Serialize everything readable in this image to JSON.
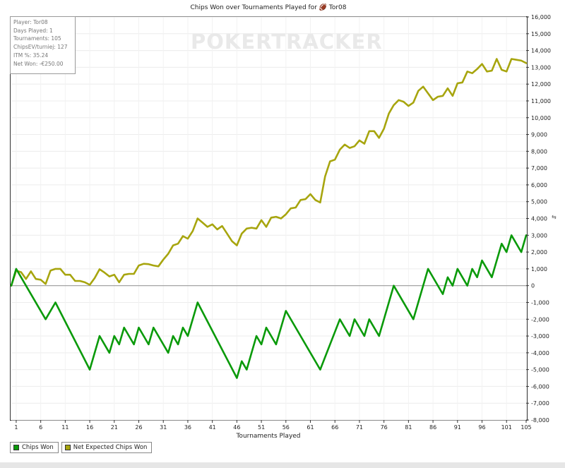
{
  "chart_data": {
    "type": "line",
    "title": "Chips Won over Tournaments Played for 🏈 Tor08",
    "xlabel": "Tournaments Played",
    "ylabel": "",
    "xlim": [
      0,
      105
    ],
    "ylim": [
      -8000,
      16000
    ],
    "x_ticks": [
      1,
      6,
      11,
      16,
      21,
      26,
      31,
      36,
      41,
      46,
      51,
      56,
      61,
      66,
      71,
      76,
      81,
      86,
      91,
      96,
      101,
      105
    ],
    "y_ticks": [
      16000,
      15000,
      14000,
      13000,
      12000,
      11000,
      10000,
      9000,
      8000,
      7000,
      6000,
      5000,
      4000,
      3000,
      2000,
      1000,
      0,
      -1000,
      -2000,
      -3000,
      -4000,
      -5000,
      -6000,
      -7000,
      -8000
    ],
    "y_tick_labels": [
      "16,000",
      "15,000",
      "14,000",
      "13,000",
      "12,000",
      "11,000",
      "10,000",
      "9,000",
      "8,000",
      "7,000",
      "6,000",
      "5,000",
      "4,000",
      "3,000",
      "2,000",
      "1,000",
      "0",
      "-1,000",
      "-2,000",
      "-3,000",
      "-4,000",
      "-5,000",
      "-6,000",
      "-7,000",
      "-8,000"
    ],
    "grid": true,
    "legend_position": "bottom-left",
    "series": [
      {
        "name": "Chips Won",
        "color": "#0a9a0a",
        "points": [
          [
            0,
            0
          ],
          [
            1,
            1000
          ],
          [
            7,
            -2000
          ],
          [
            9,
            -1000
          ],
          [
            16,
            -5000
          ],
          [
            18,
            -3000
          ],
          [
            20,
            -4000
          ],
          [
            21,
            -3000
          ],
          [
            22,
            -3500
          ],
          [
            23,
            -2500
          ],
          [
            25,
            -3500
          ],
          [
            26,
            -2500
          ],
          [
            28,
            -3500
          ],
          [
            29,
            -2500
          ],
          [
            32,
            -4000
          ],
          [
            33,
            -3000
          ],
          [
            34,
            -3500
          ],
          [
            35,
            -2500
          ],
          [
            36,
            -3000
          ],
          [
            38,
            -1000
          ],
          [
            46,
            -5500
          ],
          [
            47,
            -4500
          ],
          [
            48,
            -5000
          ],
          [
            50,
            -3000
          ],
          [
            51,
            -3500
          ],
          [
            52,
            -2500
          ],
          [
            54,
            -3500
          ],
          [
            56,
            -1500
          ],
          [
            63,
            -5000
          ],
          [
            67,
            -2000
          ],
          [
            69,
            -3000
          ],
          [
            70,
            -2000
          ],
          [
            72,
            -3000
          ],
          [
            73,
            -2000
          ],
          [
            75,
            -3000
          ],
          [
            78,
            0
          ],
          [
            82,
            -2000
          ],
          [
            85,
            1000
          ],
          [
            88,
            -500
          ],
          [
            89,
            500
          ],
          [
            90,
            0
          ],
          [
            91,
            1000
          ],
          [
            93,
            0
          ],
          [
            94,
            1000
          ],
          [
            95,
            500
          ],
          [
            96,
            1500
          ],
          [
            98,
            500
          ],
          [
            100,
            2500
          ],
          [
            101,
            2000
          ],
          [
            102,
            3000
          ],
          [
            104,
            2000
          ],
          [
            105,
            3000
          ]
        ]
      },
      {
        "name": "Net Expected Chips Won",
        "color": "#a7a50e",
        "points": [
          [
            0,
            0
          ],
          [
            1,
            900
          ],
          [
            2,
            800
          ],
          [
            3,
            400
          ],
          [
            4,
            850
          ],
          [
            5,
            400
          ],
          [
            6,
            350
          ],
          [
            7,
            100
          ],
          [
            8,
            900
          ],
          [
            9,
            1000
          ],
          [
            10,
            1000
          ],
          [
            11,
            650
          ],
          [
            12,
            650
          ],
          [
            13,
            280
          ],
          [
            14,
            280
          ],
          [
            15,
            200
          ],
          [
            16,
            50
          ],
          [
            17,
            450
          ],
          [
            18,
            980
          ],
          [
            19,
            780
          ],
          [
            20,
            550
          ],
          [
            21,
            650
          ],
          [
            22,
            200
          ],
          [
            23,
            650
          ],
          [
            24,
            700
          ],
          [
            25,
            700
          ],
          [
            26,
            1200
          ],
          [
            27,
            1300
          ],
          [
            28,
            1280
          ],
          [
            29,
            1200
          ],
          [
            30,
            1150
          ],
          [
            31,
            1550
          ],
          [
            32,
            1900
          ],
          [
            33,
            2400
          ],
          [
            34,
            2500
          ],
          [
            35,
            2950
          ],
          [
            36,
            2800
          ],
          [
            37,
            3250
          ],
          [
            38,
            4000
          ],
          [
            39,
            3750
          ],
          [
            40,
            3500
          ],
          [
            41,
            3650
          ],
          [
            42,
            3350
          ],
          [
            43,
            3550
          ],
          [
            44,
            3100
          ],
          [
            45,
            2650
          ],
          [
            46,
            2400
          ],
          [
            47,
            3100
          ],
          [
            48,
            3400
          ],
          [
            49,
            3450
          ],
          [
            50,
            3400
          ],
          [
            51,
            3900
          ],
          [
            52,
            3500
          ],
          [
            53,
            4050
          ],
          [
            54,
            4100
          ],
          [
            55,
            4000
          ],
          [
            56,
            4250
          ],
          [
            57,
            4600
          ],
          [
            58,
            4650
          ],
          [
            59,
            5100
          ],
          [
            60,
            5150
          ],
          [
            61,
            5450
          ],
          [
            62,
            5100
          ],
          [
            63,
            4950
          ],
          [
            64,
            6500
          ],
          [
            65,
            7400
          ],
          [
            66,
            7500
          ],
          [
            67,
            8100
          ],
          [
            68,
            8400
          ],
          [
            69,
            8200
          ],
          [
            70,
            8300
          ],
          [
            71,
            8650
          ],
          [
            72,
            8450
          ],
          [
            73,
            9200
          ],
          [
            74,
            9200
          ],
          [
            75,
            8800
          ],
          [
            76,
            9350
          ],
          [
            77,
            10250
          ],
          [
            78,
            10750
          ],
          [
            79,
            11050
          ],
          [
            80,
            10950
          ],
          [
            81,
            10700
          ],
          [
            82,
            10900
          ],
          [
            83,
            11600
          ],
          [
            84,
            11850
          ],
          [
            85,
            11450
          ],
          [
            86,
            11050
          ],
          [
            87,
            11250
          ],
          [
            88,
            11300
          ],
          [
            89,
            11750
          ],
          [
            90,
            11300
          ],
          [
            91,
            12050
          ],
          [
            92,
            12100
          ],
          [
            93,
            12750
          ],
          [
            94,
            12650
          ],
          [
            95,
            12900
          ],
          [
            96,
            13200
          ],
          [
            97,
            12750
          ],
          [
            98,
            12800
          ],
          [
            99,
            13500
          ],
          [
            100,
            12850
          ],
          [
            101,
            12750
          ],
          [
            102,
            13500
          ],
          [
            103,
            13450
          ],
          [
            104,
            13400
          ],
          [
            105,
            13250
          ]
        ]
      }
    ]
  },
  "stats_box": {
    "player": "Player: Tor08",
    "days_played": "Days Played: 1",
    "tournaments": "Tournaments: 105",
    "chips_ev": "ChipsEV/turniej: 127",
    "itm": "ITM %: 35.24",
    "net_won": "Net Won: -€250.00"
  },
  "watermark": "POKERTRACKER",
  "legend": {
    "items": [
      {
        "label": "Chips Won",
        "color": "#0a9a0a"
      },
      {
        "label": "Net Expected Chips Won",
        "color": "#a7a50e"
      }
    ]
  },
  "y_axis_glyph": "⇆"
}
